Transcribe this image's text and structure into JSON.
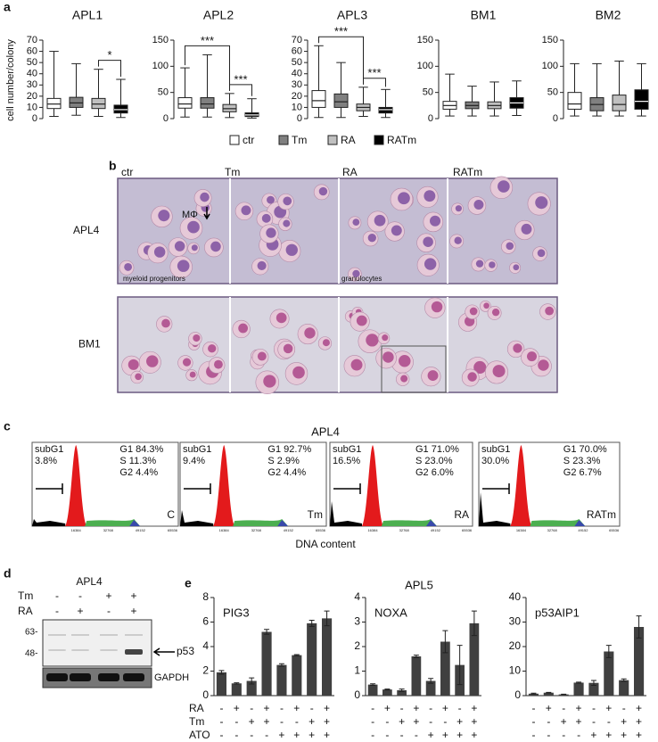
{
  "panels": [
    "a",
    "b",
    "c",
    "d",
    "e"
  ],
  "chart_data": [
    {
      "type": "box",
      "ylabel": "cell number/colony",
      "legend": [
        {
          "name": "ctr",
          "color": "#ffffff"
        },
        {
          "name": "Tm",
          "color": "#808080"
        },
        {
          "name": "RA",
          "color": "#c0c0c0"
        },
        {
          "name": "RATm",
          "color": "#000000"
        }
      ],
      "plots": [
        {
          "title": "APL1",
          "ylim": [
            0,
            70
          ],
          "yticks": [
            0,
            10,
            20,
            30,
            40,
            50,
            60,
            70
          ],
          "boxes": [
            {
              "min": 2,
              "q1": 9,
              "median": 13,
              "q3": 18,
              "max": 60
            },
            {
              "min": 3,
              "q1": 10,
              "median": 14,
              "q3": 19,
              "max": 49
            },
            {
              "min": 2,
              "q1": 9,
              "median": 13,
              "q3": 18,
              "max": 44
            },
            {
              "min": 1,
              "q1": 5,
              "median": 8,
              "q3": 12,
              "max": 35
            }
          ],
          "annotations": [
            {
              "label": "*",
              "groups": [
                "RA",
                "RATm"
              ]
            }
          ]
        },
        {
          "title": "APL2",
          "ylim": [
            0,
            150
          ],
          "yticks": [
            0,
            50,
            100,
            150
          ],
          "boxes": [
            {
              "min": 3,
              "q1": 20,
              "median": 28,
              "q3": 40,
              "max": 97
            },
            {
              "min": 3,
              "q1": 20,
              "median": 28,
              "q3": 40,
              "max": 122
            },
            {
              "min": 2,
              "q1": 13,
              "median": 19,
              "q3": 27,
              "max": 48
            },
            {
              "min": 1,
              "q1": 4,
              "median": 7,
              "q3": 11,
              "max": 38
            }
          ],
          "annotations": [
            {
              "label": "***",
              "groups": [
                "ctr",
                "RA"
              ]
            },
            {
              "label": "***",
              "groups": [
                "RA",
                "RATm"
              ]
            }
          ]
        },
        {
          "title": "APL3",
          "ylim": [
            0,
            70
          ],
          "yticks": [
            0,
            10,
            20,
            30,
            40,
            50,
            60,
            70
          ],
          "boxes": [
            {
              "min": 1,
              "q1": 10,
              "median": 16,
              "q3": 25,
              "max": 65
            },
            {
              "min": 1,
              "q1": 10,
              "median": 15,
              "q3": 22,
              "max": 50
            },
            {
              "min": 2,
              "q1": 7,
              "median": 10,
              "q3": 13,
              "max": 28
            },
            {
              "min": 1,
              "q1": 5,
              "median": 8,
              "q3": 10,
              "max": 26
            }
          ],
          "annotations": [
            {
              "label": "***",
              "groups": [
                "ctr",
                "RA"
              ]
            },
            {
              "label": "***",
              "groups": [
                "RA",
                "RATm"
              ]
            }
          ]
        },
        {
          "title": "BM1",
          "ylim": [
            0,
            150
          ],
          "yticks": [
            0,
            50,
            100,
            150
          ],
          "boxes": [
            {
              "min": 5,
              "q1": 18,
              "median": 25,
              "q3": 33,
              "max": 85
            },
            {
              "min": 5,
              "q1": 19,
              "median": 25,
              "q3": 32,
              "max": 62
            },
            {
              "min": 5,
              "q1": 19,
              "median": 25,
              "q3": 32,
              "max": 70
            },
            {
              "min": 6,
              "q1": 20,
              "median": 30,
              "q3": 40,
              "max": 72
            }
          ],
          "annotations": []
        },
        {
          "title": "BM2",
          "ylim": [
            0,
            150
          ],
          "yticks": [
            0,
            50,
            100,
            150
          ],
          "boxes": [
            {
              "min": 5,
              "q1": 18,
              "median": 28,
              "q3": 50,
              "max": 105
            },
            {
              "min": 5,
              "q1": 15,
              "median": 27,
              "q3": 40,
              "max": 105
            },
            {
              "min": 5,
              "q1": 15,
              "median": 27,
              "q3": 45,
              "max": 110
            },
            {
              "min": 5,
              "q1": 18,
              "median": 33,
              "q3": 55,
              "max": 105
            }
          ],
          "annotations": []
        }
      ]
    },
    {
      "type": "bar",
      "title": "APL5",
      "color": "#404040",
      "treatments": [
        {
          "name": "RA",
          "signs": [
            "-",
            "+",
            "-",
            "+",
            "-",
            "+",
            "-",
            "+"
          ]
        },
        {
          "name": "Tm",
          "signs": [
            "-",
            "-",
            "+",
            "+",
            "-",
            "-",
            "+",
            "+"
          ]
        },
        {
          "name": "ATO",
          "signs": [
            "-",
            "-",
            "-",
            "-",
            "+",
            "+",
            "+",
            "+"
          ]
        }
      ],
      "plots": [
        {
          "title": "PIG3",
          "ylim": [
            0,
            8
          ],
          "yticks": [
            0,
            2,
            4,
            6,
            8
          ],
          "values": [
            1.9,
            1.0,
            1.2,
            5.2,
            2.5,
            3.3,
            5.9,
            6.3
          ],
          "errors": [
            0.15,
            0.05,
            0.25,
            0.2,
            0.1,
            0.05,
            0.25,
            0.6
          ]
        },
        {
          "title": "NOXA",
          "ylim": [
            0,
            4
          ],
          "yticks": [
            0,
            1,
            2,
            3,
            4
          ],
          "values": [
            0.45,
            0.25,
            0.22,
            1.6,
            0.6,
            2.2,
            1.25,
            2.95
          ],
          "errors": [
            0.03,
            0.02,
            0.05,
            0.05,
            0.1,
            0.45,
            0.8,
            0.5
          ]
        },
        {
          "title": "p53AIP1",
          "ylim": [
            0,
            40
          ],
          "yticks": [
            0,
            10,
            20,
            30,
            40
          ],
          "values": [
            0.8,
            1.2,
            0.5,
            5.3,
            5.2,
            18,
            6.3,
            28
          ],
          "errors": [
            0.2,
            0.1,
            0.1,
            0.2,
            1,
            2.5,
            0.5,
            4.5
          ]
        }
      ]
    }
  ],
  "micrographs": {
    "columns": [
      "ctr",
      "Tm",
      "RA",
      "RATm"
    ],
    "rows": [
      "APL4",
      "BM1"
    ],
    "labels": [
      "MΦ",
      "myeloid progenitors",
      "granulocytes"
    ]
  },
  "flow": {
    "title": "APL4",
    "xlabel": "DNA content",
    "gate_label": "subG1",
    "xticks": [
      "16384",
      "32768",
      "49152",
      "65536"
    ],
    "panels": [
      {
        "subg1": "3.8%",
        "g1": "G1 84.3%",
        "s": "S  11.3%",
        "g2": "G2 4.4%",
        "tag": "C"
      },
      {
        "subg1": "9.4%",
        "g1": "G1 92.7%",
        "s": "S  2.9%",
        "g2": "G2 4.4%",
        "tag": "Tm"
      },
      {
        "subg1": "16.5%",
        "g1": "G1 71.0%",
        "s": "S  23.0%",
        "g2": "G2 6.0%",
        "tag": "RA"
      },
      {
        "subg1": "30.0%",
        "g1": "G1 70.0%",
        "s": "S  23.3%",
        "g2": "G2 6.7%",
        "tag": "RATm"
      }
    ]
  },
  "blot": {
    "title": "APL4",
    "rows": [
      {
        "name": "Tm",
        "signs": [
          "-",
          "-",
          "+",
          "+"
        ]
      },
      {
        "name": "RA",
        "signs": [
          "-",
          "+",
          "-",
          "+"
        ]
      }
    ],
    "markers": [
      "63-",
      "48-"
    ],
    "target": "p53",
    "loading": "GAPDH"
  }
}
